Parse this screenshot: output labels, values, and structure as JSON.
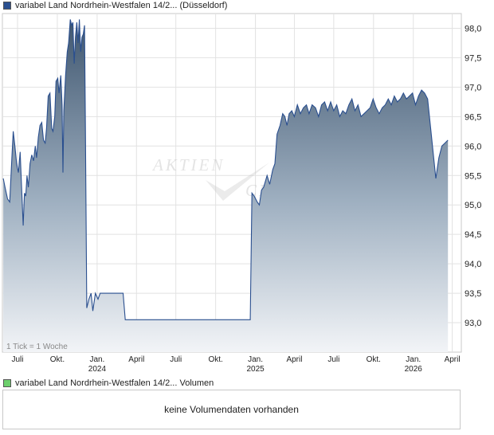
{
  "legend": {
    "price_label": "variabel Land Nordrhein-Westfalen 14/2... (Düsseldorf)",
    "price_color": "#2a4f8f",
    "volume_label": "variabel Land Nordrhein-Westfalen 14/2... Volumen",
    "volume_color": "#6ccf6c"
  },
  "tick_note": "1 Tick = 1 Woche",
  "watermark": {
    "line1": "AKTIEN",
    "line2": "CHECK"
  },
  "volume_panel": {
    "message": "keine Volumendaten vorhanden"
  },
  "chart_data": {
    "type": "area",
    "ylim": [
      92.5,
      98.25
    ],
    "y_ticks": [
      93.0,
      93.5,
      94.0,
      94.5,
      95.0,
      95.5,
      96.0,
      96.5,
      97.0,
      97.5,
      98.0
    ],
    "y_tick_labels": [
      "93,0",
      "93,5",
      "94,0",
      "94,5",
      "95,0",
      "95,5",
      "96,0",
      "96,5",
      "97,0",
      "97,5",
      "98,0"
    ],
    "x_range": [
      "2023-05-27",
      "2026-04-22"
    ],
    "x_ticks": [
      {
        "date": "2023-07-01",
        "label": "Juli",
        "year": ""
      },
      {
        "date": "2023-10-01",
        "label": "Okt.",
        "year": ""
      },
      {
        "date": "2024-01-01",
        "label": "Jan.",
        "year": "2024"
      },
      {
        "date": "2024-04-01",
        "label": "April",
        "year": ""
      },
      {
        "date": "2024-07-01",
        "label": "Juli",
        "year": ""
      },
      {
        "date": "2024-10-01",
        "label": "Okt.",
        "year": ""
      },
      {
        "date": "2025-01-01",
        "label": "Jan.",
        "year": "2025"
      },
      {
        "date": "2025-04-01",
        "label": "April",
        "year": ""
      },
      {
        "date": "2025-07-01",
        "label": "Juli",
        "year": ""
      },
      {
        "date": "2025-10-01",
        "label": "Okt.",
        "year": ""
      },
      {
        "date": "2026-01-01",
        "label": "Jan.",
        "year": "2026"
      },
      {
        "date": "2026-04-01",
        "label": "April",
        "year": ""
      }
    ],
    "series": [
      {
        "points": [
          [
            "2023-05-29",
            95.45
          ],
          [
            "2023-06-02",
            95.3
          ],
          [
            "2023-06-08",
            95.1
          ],
          [
            "2023-06-13",
            95.05
          ],
          [
            "2023-06-18",
            95.8
          ],
          [
            "2023-06-21",
            96.25
          ],
          [
            "2023-06-25",
            96.0
          ],
          [
            "2023-06-29",
            95.7
          ],
          [
            "2023-07-03",
            95.55
          ],
          [
            "2023-07-07",
            95.9
          ],
          [
            "2023-07-11",
            95.2
          ],
          [
            "2023-07-14",
            94.65
          ],
          [
            "2023-07-17",
            95.2
          ],
          [
            "2023-07-20",
            95.15
          ],
          [
            "2023-07-23",
            95.5
          ],
          [
            "2023-07-26",
            95.3
          ],
          [
            "2023-07-30",
            95.7
          ],
          [
            "2023-08-03",
            95.85
          ],
          [
            "2023-08-07",
            95.75
          ],
          [
            "2023-08-11",
            96.0
          ],
          [
            "2023-08-14",
            95.8
          ],
          [
            "2023-08-18",
            96.15
          ],
          [
            "2023-08-22",
            96.35
          ],
          [
            "2023-08-26",
            96.4
          ],
          [
            "2023-08-30",
            96.1
          ],
          [
            "2023-09-03",
            96.05
          ],
          [
            "2023-09-06",
            96.3
          ],
          [
            "2023-09-10",
            96.85
          ],
          [
            "2023-09-14",
            96.9
          ],
          [
            "2023-09-18",
            96.3
          ],
          [
            "2023-09-21",
            96.25
          ],
          [
            "2023-09-25",
            96.5
          ],
          [
            "2023-09-28",
            97.1
          ],
          [
            "2023-10-02",
            97.15
          ],
          [
            "2023-10-05",
            96.9
          ],
          [
            "2023-10-09",
            97.2
          ],
          [
            "2023-10-12",
            96.7
          ],
          [
            "2023-10-14",
            95.55
          ],
          [
            "2023-10-16",
            96.6
          ],
          [
            "2023-10-20",
            97.2
          ],
          [
            "2023-10-24",
            97.6
          ],
          [
            "2023-10-27",
            97.75
          ],
          [
            "2023-10-31",
            98.15
          ],
          [
            "2023-11-03",
            98.05
          ],
          [
            "2023-11-06",
            98.1
          ],
          [
            "2023-11-09",
            97.4
          ],
          [
            "2023-11-12",
            97.85
          ],
          [
            "2023-11-15",
            98.1
          ],
          [
            "2023-11-18",
            97.75
          ],
          [
            "2023-11-21",
            98.15
          ],
          [
            "2023-11-24",
            97.6
          ],
          [
            "2023-11-27",
            97.85
          ],
          [
            "2023-11-30",
            97.9
          ],
          [
            "2023-12-03",
            98.05
          ],
          [
            "2023-12-05",
            96.3
          ],
          [
            "2023-12-08",
            93.25
          ],
          [
            "2023-12-13",
            93.4
          ],
          [
            "2023-12-18",
            93.5
          ],
          [
            "2023-12-22",
            93.2
          ],
          [
            "2023-12-28",
            93.5
          ],
          [
            "2024-01-03",
            93.4
          ],
          [
            "2024-01-08",
            93.5
          ],
          [
            "2024-03-01",
            93.5
          ],
          [
            "2024-03-06",
            93.05
          ],
          [
            "2024-12-20",
            93.05
          ],
          [
            "2024-12-24",
            95.2
          ],
          [
            "2024-12-29",
            95.15
          ],
          [
            "2025-01-05",
            95.05
          ],
          [
            "2025-01-10",
            95.0
          ],
          [
            "2025-01-15",
            95.25
          ],
          [
            "2025-01-20",
            95.3
          ],
          [
            "2025-01-28",
            95.5
          ],
          [
            "2025-02-03",
            95.35
          ],
          [
            "2025-02-10",
            95.6
          ],
          [
            "2025-02-15",
            95.7
          ],
          [
            "2025-02-20",
            96.2
          ],
          [
            "2025-02-27",
            96.35
          ],
          [
            "2025-03-05",
            96.55
          ],
          [
            "2025-03-10",
            96.5
          ],
          [
            "2025-03-15",
            96.35
          ],
          [
            "2025-03-20",
            96.55
          ],
          [
            "2025-03-26",
            96.6
          ],
          [
            "2025-04-01",
            96.5
          ],
          [
            "2025-04-08",
            96.7
          ],
          [
            "2025-04-15",
            96.55
          ],
          [
            "2025-04-22",
            96.65
          ],
          [
            "2025-04-29",
            96.7
          ],
          [
            "2025-05-05",
            96.55
          ],
          [
            "2025-05-12",
            96.7
          ],
          [
            "2025-05-20",
            96.65
          ],
          [
            "2025-05-27",
            96.5
          ],
          [
            "2025-06-03",
            96.7
          ],
          [
            "2025-06-10",
            96.75
          ],
          [
            "2025-06-17",
            96.6
          ],
          [
            "2025-06-24",
            96.75
          ],
          [
            "2025-07-01",
            96.6
          ],
          [
            "2025-07-08",
            96.7
          ],
          [
            "2025-07-15",
            96.5
          ],
          [
            "2025-07-22",
            96.6
          ],
          [
            "2025-07-29",
            96.55
          ],
          [
            "2025-08-05",
            96.7
          ],
          [
            "2025-08-12",
            96.8
          ],
          [
            "2025-08-19",
            96.6
          ],
          [
            "2025-08-26",
            96.7
          ],
          [
            "2025-09-02",
            96.5
          ],
          [
            "2025-09-09",
            96.55
          ],
          [
            "2025-09-16",
            96.6
          ],
          [
            "2025-09-23",
            96.65
          ],
          [
            "2025-09-30",
            96.8
          ],
          [
            "2025-10-07",
            96.65
          ],
          [
            "2025-10-14",
            96.55
          ],
          [
            "2025-10-21",
            96.65
          ],
          [
            "2025-10-28",
            96.7
          ],
          [
            "2025-11-04",
            96.8
          ],
          [
            "2025-11-11",
            96.7
          ],
          [
            "2025-11-18",
            96.85
          ],
          [
            "2025-11-25",
            96.75
          ],
          [
            "2025-12-02",
            96.8
          ],
          [
            "2025-12-09",
            96.9
          ],
          [
            "2025-12-16",
            96.8
          ],
          [
            "2025-12-23",
            96.85
          ],
          [
            "2025-12-30",
            96.9
          ],
          [
            "2026-01-06",
            96.7
          ],
          [
            "2026-01-13",
            96.85
          ],
          [
            "2026-01-20",
            96.95
          ],
          [
            "2026-01-27",
            96.9
          ],
          [
            "2026-02-03",
            96.8
          ],
          [
            "2026-02-10",
            96.3
          ],
          [
            "2026-02-17",
            95.8
          ],
          [
            "2026-02-22",
            95.45
          ],
          [
            "2026-03-01",
            95.8
          ],
          [
            "2026-03-08",
            96.0
          ],
          [
            "2026-03-15",
            96.05
          ],
          [
            "2026-03-22",
            96.1
          ]
        ]
      }
    ]
  }
}
